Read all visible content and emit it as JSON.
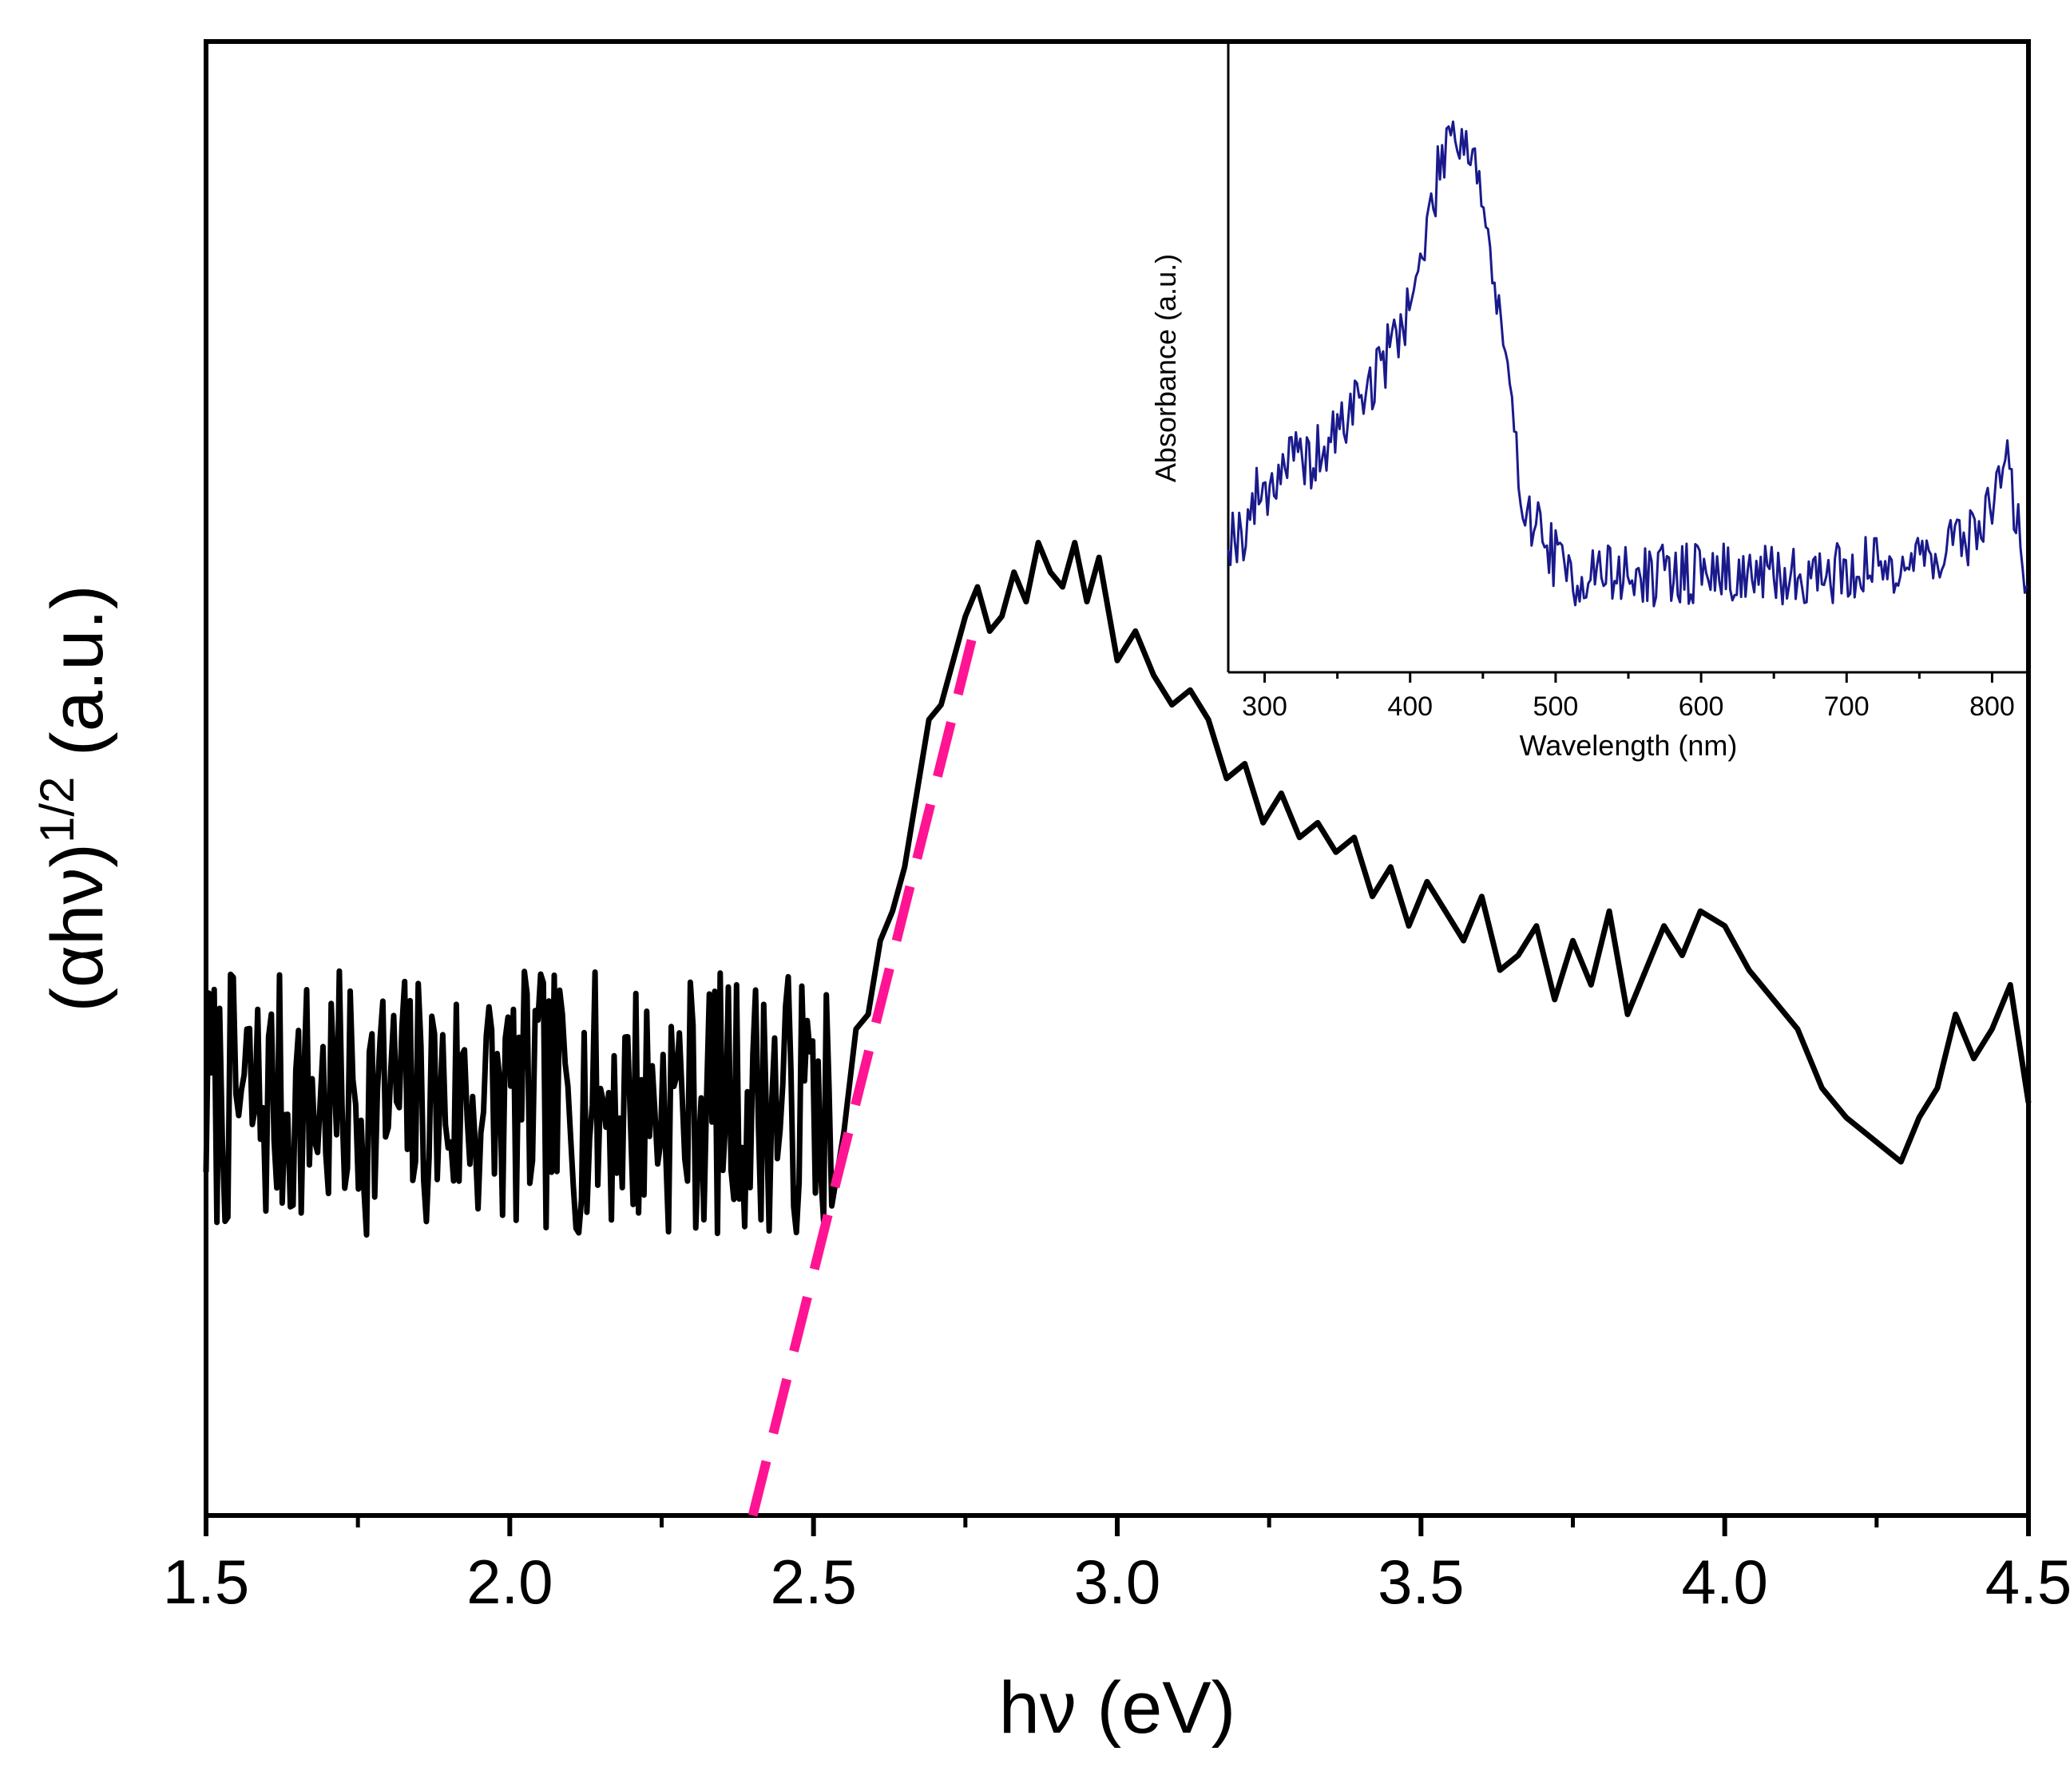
{
  "chart_data": [
    {
      "type": "line",
      "xlabel": "hν (eV)",
      "ylabel": "(αhν)",
      "ylabel_sup": "1/2",
      "ylabel_suffix": " (a.u.)",
      "xlim": [
        1.5,
        4.5
      ],
      "ylim": [
        0,
        1
      ],
      "xticks": [
        "1.5",
        "2.0",
        "2.5",
        "3.0",
        "3.5",
        "4.0",
        "4.5"
      ],
      "xtick_values": [
        1.5,
        2.0,
        2.5,
        3.0,
        3.5,
        4.0,
        4.5
      ],
      "minor_xtick_step": 0.25,
      "grid": false,
      "legend": "none",
      "series": [
        {
          "color": "#000000",
          "noise_region": {
            "x_start": 1.5,
            "x_end": 2.53,
            "y_center": 0.28,
            "y_spread": 0.09
          },
          "x": [
            2.53,
            2.55,
            2.57,
            2.59,
            2.61,
            2.63,
            2.65,
            2.67,
            2.69,
            2.71,
            2.73,
            2.75,
            2.77,
            2.79,
            2.81,
            2.83,
            2.85,
            2.87,
            2.89,
            2.91,
            2.93,
            2.95,
            2.97,
            3.0,
            3.03,
            3.06,
            3.09,
            3.12,
            3.15,
            3.18,
            3.21,
            3.24,
            3.27,
            3.3,
            3.33,
            3.36,
            3.39,
            3.42,
            3.45,
            3.48,
            3.51,
            3.54,
            3.57,
            3.6,
            3.63,
            3.66,
            3.69,
            3.72,
            3.75,
            3.78,
            3.81,
            3.84,
            3.87,
            3.9,
            3.93,
            3.96,
            4.0,
            4.04,
            4.08,
            4.12,
            4.16,
            4.2,
            4.23,
            4.26,
            4.29,
            4.32,
            4.35,
            4.38,
            4.41,
            4.44,
            4.47,
            4.5
          ],
          "y": [
            0.21,
            0.26,
            0.33,
            0.34,
            0.39,
            0.41,
            0.44,
            0.49,
            0.54,
            0.55,
            0.58,
            0.61,
            0.63,
            0.6,
            0.61,
            0.64,
            0.62,
            0.66,
            0.64,
            0.63,
            0.66,
            0.62,
            0.65,
            0.58,
            0.6,
            0.57,
            0.55,
            0.56,
            0.54,
            0.5,
            0.51,
            0.47,
            0.49,
            0.46,
            0.47,
            0.45,
            0.46,
            0.42,
            0.44,
            0.4,
            0.43,
            0.41,
            0.39,
            0.42,
            0.37,
            0.38,
            0.4,
            0.35,
            0.39,
            0.36,
            0.41,
            0.34,
            0.37,
            0.4,
            0.38,
            0.41,
            0.4,
            0.37,
            0.35,
            0.33,
            0.29,
            0.27,
            0.26,
            0.25,
            0.24,
            0.27,
            0.29,
            0.34,
            0.31,
            0.33,
            0.36,
            0.28
          ]
        },
        {
          "color": "#ff1493",
          "dashed": true,
          "x": [
            2.4,
            2.77
          ],
          "y": [
            0.0,
            0.61
          ]
        }
      ]
    },
    {
      "type": "line",
      "xlabel": "Wavelength (nm)",
      "ylabel": "Absorbance (a.u.)",
      "xlim": [
        275,
        825
      ],
      "ylim": [
        0,
        1
      ],
      "xticks": [
        "300",
        "400",
        "500",
        "600",
        "700",
        "800"
      ],
      "xtick_values": [
        300,
        400,
        500,
        600,
        700,
        800
      ],
      "minor_xtick_step": 50,
      "grid": false,
      "legend": "none",
      "series": [
        {
          "color": "#1a1a8c",
          "x": [
            275,
            285,
            295,
            305,
            315,
            325,
            335,
            345,
            355,
            365,
            375,
            385,
            395,
            405,
            415,
            425,
            430,
            435,
            445,
            455,
            465,
            475,
            485,
            495,
            505,
            515,
            530,
            560,
            600,
            650,
            700,
            750,
            780,
            795,
            805,
            812,
            820,
            825
          ],
          "y": [
            0.22,
            0.22,
            0.28,
            0.3,
            0.34,
            0.33,
            0.34,
            0.36,
            0.4,
            0.44,
            0.46,
            0.51,
            0.56,
            0.62,
            0.74,
            0.85,
            0.87,
            0.85,
            0.82,
            0.66,
            0.5,
            0.3,
            0.24,
            0.2,
            0.16,
            0.15,
            0.16,
            0.15,
            0.16,
            0.15,
            0.16,
            0.18,
            0.21,
            0.24,
            0.31,
            0.33,
            0.18,
            0.15
          ],
          "noise_amplitude": 0.05
        }
      ]
    }
  ]
}
